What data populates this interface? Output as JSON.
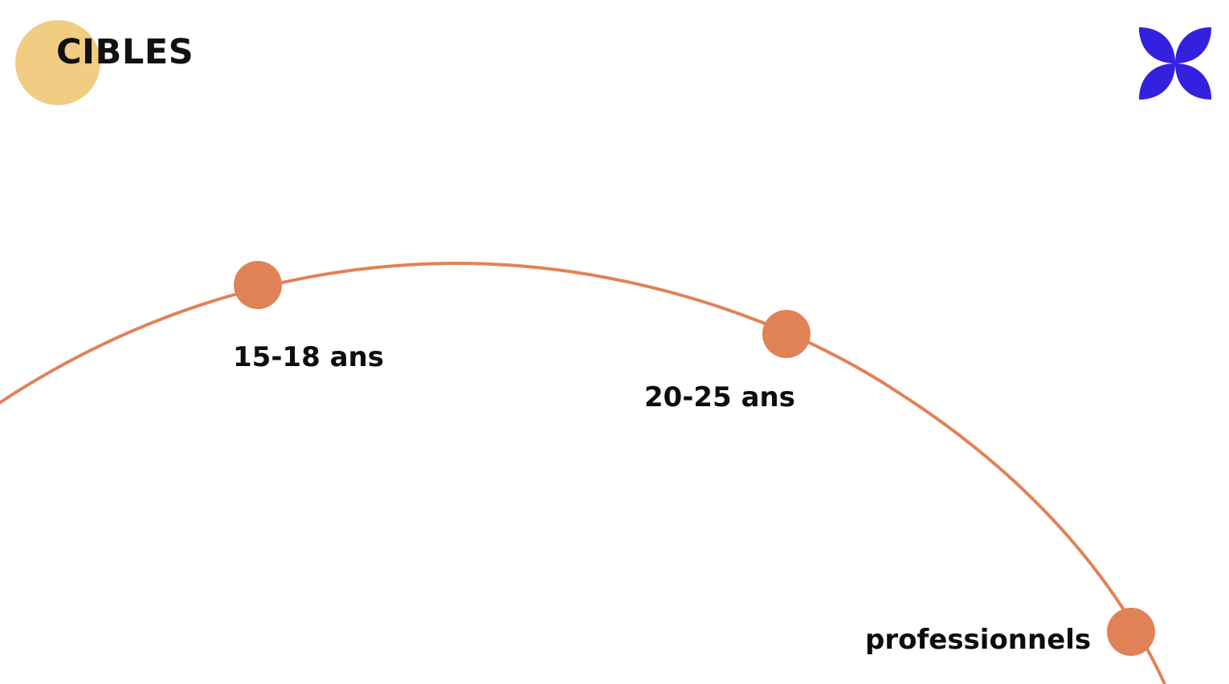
{
  "slide": {
    "title": "CIBLES"
  },
  "timeline": {
    "points": [
      {
        "label": "15-18 ans"
      },
      {
        "label": "20-25 ans"
      },
      {
        "label": "professionnels"
      }
    ]
  },
  "colors": {
    "title_circle": "#F0CD82",
    "arc": "#E08256",
    "logo": "#3321E0",
    "text": "#0D0D0D"
  },
  "icons": {
    "logo": "four-petal-flower-logo"
  }
}
